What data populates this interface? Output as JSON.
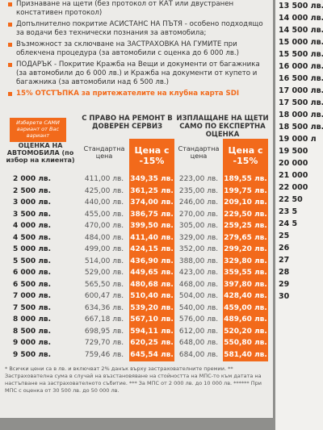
{
  "bullets": [
    "Признаване на щети (без протокол от КАТ или двустранен констативен протокол)",
    "Допълнително покритие АСИСТАНС НА ПЪТЯ - особено подходящо за водачи без технически познания за автомобила;",
    "Възможност за сключване на ЗАСТРАХОВКА НА ГУМИТЕ при облекчена процедура (за автомобили с оценка до 6 000 лв.)",
    "ПОДАРЪК - Покритие Кражба на Вещи и документи от багажника (за автомобили до 6 000 лв.) и Кражба на документи от купето и багажника (за автомобили над 6 500 лв.)",
    "15% ОТСТЪПКА за притежателите на клубна карта SDI"
  ],
  "table": {
    "choose_note": "Изберете САМИ вариант от Вас вариант",
    "group_repair": "С ПРАВО НА РЕМОНТ В ДОВЕРЕН СЕРВИЗ",
    "group_expert": "ИЗПЛАЩАНЕ НА ЩЕТИ САМО ПО ЕКСПЕРТНА ОЦЕНКА",
    "columns": [
      "ОЦЕНКА НА АВТОМОБИЛА (по избор на клиента)",
      "Стандартна цена",
      "Цена с -15%",
      "Стандартна цена",
      "Цена с -15%"
    ],
    "rows": [
      [
        "2 000 лв.",
        "411,00 лв.",
        "349,35 лв.",
        "223,00 лв.",
        "189,55 лв."
      ],
      [
        "2 500 лв.",
        "425,00 лв.",
        "361,25 лв.",
        "235,00 лв.",
        "199,75 лв."
      ],
      [
        "3 000 лв.",
        "440,00 лв.",
        "374,00 лв.",
        "246,00 лв.",
        "209,10 лв."
      ],
      [
        "3 500 лв.",
        "455,00 лв.",
        "386,75 лв.",
        "270,00 лв.",
        "229,50 лв."
      ],
      [
        "4 000 лв.",
        "470,00 лв.",
        "399,50 лв.",
        "305,00 лв.",
        "259,25 лв."
      ],
      [
        "4 500 лв.",
        "484,00 лв.",
        "411,40 лв.",
        "329,00 лв.",
        "279,65 лв."
      ],
      [
        "5 000 лв.",
        "499,00 лв.",
        "424,15 лв.",
        "352,00 лв.",
        "299,20 лв."
      ],
      [
        "5 500 лв.",
        "514,00 лв.",
        "436,90 лв.",
        "388,00 лв.",
        "329,80 лв."
      ],
      [
        "6 000 лв.",
        "529,00 лв.",
        "449,65 лв.",
        "423,00 лв.",
        "359,55 лв."
      ],
      [
        "6 500 лв.",
        "565,50 лв.",
        "480,68 лв.",
        "468,00 лв.",
        "397,80 лв."
      ],
      [
        "7 000 лв.",
        "600,47 лв.",
        "510,40 лв.",
        "504,00 лв.",
        "428,40 лв."
      ],
      [
        "7 500 лв.",
        "634,36 лв.",
        "539,20 лв.",
        "540,00 лв.",
        "459,00 лв."
      ],
      [
        "8 000 лв.",
        "667,18 лв.",
        "567,10 лв.",
        "576,00 лв.",
        "489,60 лв."
      ],
      [
        "8 500 лв.",
        "698,95 лв.",
        "594,11 лв.",
        "612,00 лв.",
        "520,20 лв."
      ],
      [
        "9 000 лв.",
        "729,70 лв.",
        "620,25 лв.",
        "648,00 лв.",
        "550,80 лв."
      ],
      [
        "9 500 лв.",
        "759,46 лв.",
        "645,54 лв.",
        "684,00 лв.",
        "581,40 лв."
      ]
    ]
  },
  "footnote": "* Всички цени са в лв. и включват 2% данък върху застрахователните премии. ** Застрахователна сума в случай на възстановяване на стойността на МПС-то към датата на настъпване на застрахователното събитие. *** За МПС от 2 000 лв. до 10 000 лв. ****** При МПС с оценка от 30 500 лв. до 50 000 лв.",
  "side_list": [
    "13 500 лв.",
    "14 000 лв.",
    "14 500 лв.",
    "15 000 лв.",
    "15 500 лв.",
    "16 000 лв.",
    "16 500 лв.",
    "17 000 лв.",
    "17 500 лв.",
    "18 000 лв.",
    "18 500 лв.",
    "19 000 л",
    "19 500",
    "20 000",
    "21 000",
    "22 000",
    "22 50",
    "23 5",
    "24 5",
    "25",
    "26",
    "27",
    "28",
    "29",
    "30"
  ]
}
